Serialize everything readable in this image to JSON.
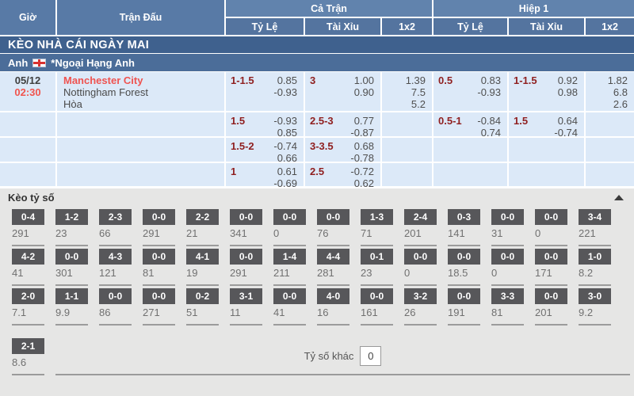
{
  "header": {
    "time": "Giờ",
    "match": "Trận Đấu",
    "full_match": "Cả Trận",
    "first_half": "Hiệp 1",
    "handicap": "Tỷ Lệ",
    "over_under": "Tài Xỉu",
    "one_x_two": "1x2"
  },
  "section_title": "KÈO NHÀ CÁI NGÀY MAI",
  "league": {
    "country": "Anh",
    "flag": "england-flag",
    "name": "*Ngoại Hạng Anh"
  },
  "match": {
    "date": "05/12",
    "time": "02:30",
    "home": "Manchester City",
    "away": "Nottingham Forest",
    "draw": "Hòa"
  },
  "odds_rows": [
    {
      "ft_hc": "1-1.5",
      "ft_hc_top": "0.85",
      "ft_hc_bot": "-0.93",
      "ft_ou": "3",
      "ft_ou_top": "1.00",
      "ft_ou_bot": "0.90",
      "ft_1": "1.39",
      "ft_x": "7.5",
      "ft_2": "5.2",
      "h1_hc": "0.5",
      "h1_hc_top": "0.83",
      "h1_hc_bot": "-0.93",
      "h1_ou": "1-1.5",
      "h1_ou_top": "0.92",
      "h1_ou_bot": "0.98",
      "h1_1": "1.82",
      "h1_x": "6.8",
      "h1_2": "2.6"
    },
    {
      "ft_hc": "1.5",
      "ft_hc_top": "-0.93",
      "ft_hc_bot": "0.85",
      "ft_ou": "2.5-3",
      "ft_ou_top": "0.77",
      "ft_ou_bot": "-0.87",
      "h1_hc": "0.5-1",
      "h1_hc_top": "-0.84",
      "h1_hc_bot": "0.74",
      "h1_ou": "1.5",
      "h1_ou_top": "0.64",
      "h1_ou_bot": "-0.74"
    },
    {
      "ft_hc": "1.5-2",
      "ft_hc_top": "-0.74",
      "ft_hc_bot": "0.66",
      "ft_ou": "3-3.5",
      "ft_ou_top": "0.68",
      "ft_ou_bot": "-0.78"
    },
    {
      "ft_hc": "1",
      "ft_hc_top": "0.61",
      "ft_hc_bot": "-0.69",
      "ft_ou": "2.5",
      "ft_ou_top": "-0.72",
      "ft_ou_bot": "0.62"
    }
  ],
  "score_section": {
    "title": "Kèo tỷ số",
    "collapse_icon": "chevron-up",
    "rows": [
      [
        {
          "score": "0-4",
          "odds": "291"
        },
        {
          "score": "1-2",
          "odds": "23"
        },
        {
          "score": "2-3",
          "odds": "66"
        },
        {
          "score": "0-0",
          "odds": "291"
        },
        {
          "score": "2-2",
          "odds": "21"
        },
        {
          "score": "0-0",
          "odds": "341"
        },
        {
          "score": "0-0",
          "odds": "0"
        },
        {
          "score": "0-0",
          "odds": "76"
        },
        {
          "score": "1-3",
          "odds": "71"
        },
        {
          "score": "2-4",
          "odds": "201"
        },
        {
          "score": "0-3",
          "odds": "141"
        },
        {
          "score": "0-0",
          "odds": "31"
        },
        {
          "score": "0-0",
          "odds": "0"
        },
        {
          "score": "3-4",
          "odds": "221"
        }
      ],
      [
        {
          "score": "4-2",
          "odds": "41"
        },
        {
          "score": "0-0",
          "odds": "301"
        },
        {
          "score": "4-3",
          "odds": "121"
        },
        {
          "score": "0-0",
          "odds": "81"
        },
        {
          "score": "4-1",
          "odds": "19"
        },
        {
          "score": "0-0",
          "odds": "291"
        },
        {
          "score": "1-4",
          "odds": "211"
        },
        {
          "score": "4-4",
          "odds": "281"
        },
        {
          "score": "0-1",
          "odds": "23"
        },
        {
          "score": "0-0",
          "odds": "0"
        },
        {
          "score": "0-0",
          "odds": "18.5"
        },
        {
          "score": "0-0",
          "odds": "0"
        },
        {
          "score": "0-0",
          "odds": "171"
        },
        {
          "score": "1-0",
          "odds": "8.2"
        }
      ],
      [
        {
          "score": "2-0",
          "odds": "7.1"
        },
        {
          "score": "1-1",
          "odds": "9.9"
        },
        {
          "score": "0-0",
          "odds": "86"
        },
        {
          "score": "0-0",
          "odds": "271"
        },
        {
          "score": "0-2",
          "odds": "51"
        },
        {
          "score": "3-1",
          "odds": "11"
        },
        {
          "score": "0-0",
          "odds": "41"
        },
        {
          "score": "4-0",
          "odds": "16"
        },
        {
          "score": "0-0",
          "odds": "161"
        },
        {
          "score": "3-2",
          "odds": "26"
        },
        {
          "score": "0-0",
          "odds": "191"
        },
        {
          "score": "3-3",
          "odds": "81"
        },
        {
          "score": "0-0",
          "odds": "201"
        },
        {
          "score": "3-0",
          "odds": "9.2"
        }
      ]
    ],
    "last_row": {
      "score": "2-1",
      "odds": "8.6"
    },
    "other_label": "Tỷ số khác",
    "other_value": "0"
  },
  "colors": {
    "header_band": "#6183ad",
    "header_sub": "#54749f",
    "title_bar": "#3f618e",
    "league_bar": "#4b6d99",
    "row_bg": "#dce9f8",
    "team_red": "#ef5350",
    "handicap_maroon": "#8f1f1f",
    "chip_gray": "#57575a",
    "section_bg": "#e6e6e5"
  }
}
